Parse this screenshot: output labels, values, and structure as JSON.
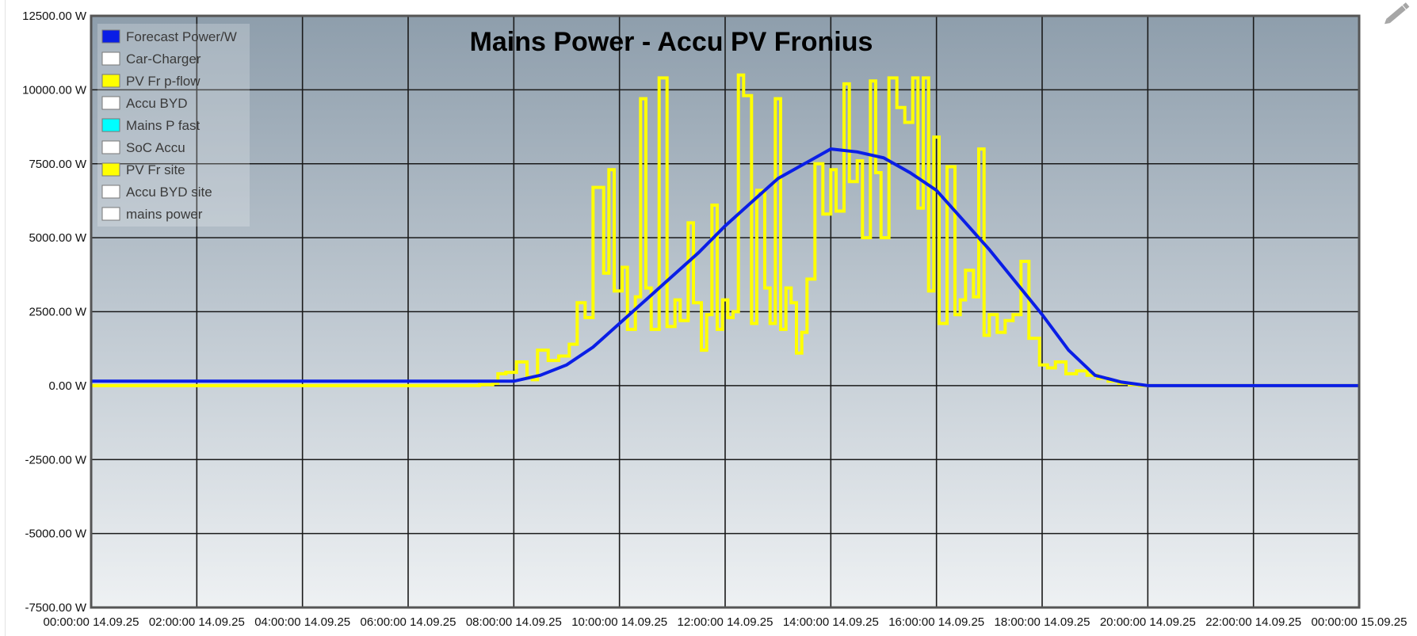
{
  "chart_data": {
    "type": "line",
    "title": "Mains Power - Accu PV Fronius",
    "xlabel": "",
    "ylabel": "",
    "x_range_hours": [
      0,
      24
    ],
    "ylim": [
      -7500,
      12500
    ],
    "y_ticks": [
      12500,
      10000,
      7500,
      5000,
      2500,
      0,
      -2500,
      -5000,
      -7500
    ],
    "y_tick_labels": [
      "12500.00 W",
      "10000.00 W",
      "7500.00 W",
      "5000.00 W",
      "2500.00 W",
      "0.00 W",
      "-2500.00 W",
      "-5000.00 W",
      "-7500.00 W"
    ],
    "x_ticks_hours": [
      0,
      2,
      4,
      6,
      8,
      10,
      12,
      14,
      16,
      18,
      20,
      22,
      24
    ],
    "x_tick_labels": [
      "00:00:00 14.09.25",
      "02:00:00 14.09.25",
      "04:00:00 14.09.25",
      "06:00:00 14.09.25",
      "08:00:00 14.09.25",
      "10:00:00 14.09.25",
      "12:00:00 14.09.25",
      "14:00:00 14.09.25",
      "16:00:00 14.09.25",
      "18:00:00 14.09.25",
      "20:00:00 14.09.25",
      "22:00:00 14.09.25",
      "00:00:00 15.09.25"
    ],
    "grid": true,
    "legend_position": "top-left",
    "legend": [
      {
        "name": "Forecast Power/W",
        "color": "#0a1ee6"
      },
      {
        "name": "Car-Charger",
        "color": "#ffffff"
      },
      {
        "name": "PV Fr p-flow",
        "color": "#ffff00"
      },
      {
        "name": "Accu BYD",
        "color": "#ffffff"
      },
      {
        "name": "Mains P fast",
        "color": "#00ffff"
      },
      {
        "name": "SoC Accu",
        "color": "#ffffff"
      },
      {
        "name": "PV Fr site",
        "color": "#ffff00"
      },
      {
        "name": "Accu BYD site",
        "color": "#ffffff"
      },
      {
        "name": "mains power",
        "color": "#ffffff"
      }
    ],
    "series": [
      {
        "name": "Forecast Power/W",
        "color": "#0a1ee6",
        "step": false,
        "x": [
          0,
          8,
          8.5,
          9,
          9.5,
          10,
          10.5,
          11,
          11.5,
          12,
          12.5,
          13,
          13.5,
          14,
          14.5,
          15,
          15.5,
          16,
          16.5,
          17,
          17.5,
          18,
          18.5,
          19,
          19.5,
          20,
          24
        ],
        "y": [
          150,
          150,
          350,
          700,
          1300,
          2100,
          2900,
          3700,
          4500,
          5400,
          6200,
          7000,
          7500,
          8000,
          7900,
          7700,
          7200,
          6600,
          5600,
          4600,
          3500,
          2400,
          1200,
          350,
          120,
          0,
          0
        ]
      },
      {
        "name": "PV Fr p-flow",
        "color": "#ffff00",
        "step": true,
        "x": [
          0,
          7.35,
          7.6,
          7.7,
          7.85,
          8.05,
          8.25,
          8.35,
          8.45,
          8.65,
          8.85,
          9.05,
          9.2,
          9.35,
          9.5,
          9.7,
          9.8,
          9.9,
          10.05,
          10.15,
          10.3,
          10.4,
          10.5,
          10.6,
          10.75,
          10.9,
          11.05,
          11.15,
          11.3,
          11.4,
          11.55,
          11.65,
          11.75,
          11.85,
          11.95,
          12.05,
          12.15,
          12.25,
          12.35,
          12.5,
          12.6,
          12.75,
          12.85,
          12.95,
          13.05,
          13.15,
          13.25,
          13.35,
          13.45,
          13.55,
          13.7,
          13.85,
          14.0,
          14.1,
          14.25,
          14.35,
          14.5,
          14.6,
          14.75,
          14.85,
          14.95,
          15.1,
          15.25,
          15.4,
          15.55,
          15.65,
          15.75,
          15.85,
          15.95,
          16.05,
          16.2,
          16.35,
          16.45,
          16.55,
          16.7,
          16.8,
          16.9,
          17.0,
          17.15,
          17.3,
          17.45,
          17.6,
          17.75,
          17.95,
          18.1,
          18.25,
          18.45,
          18.65,
          18.85,
          19.05,
          19.25,
          19.45,
          19.65,
          19.85,
          20.05,
          24
        ],
        "y": [
          0,
          30,
          80,
          400,
          450,
          800,
          300,
          200,
          1200,
          850,
          1000,
          1400,
          2800,
          2300,
          6700,
          3800,
          7300,
          3200,
          4000,
          1900,
          3000,
          9700,
          3300,
          1900,
          10400,
          2000,
          2900,
          2200,
          5500,
          2800,
          1200,
          2400,
          6100,
          1900,
          2900,
          2300,
          2500,
          10500,
          9800,
          2100,
          6600,
          3300,
          2100,
          9700,
          1900,
          3300,
          2800,
          1100,
          1800,
          3600,
          7500,
          5800,
          7300,
          5900,
          10200,
          6900,
          7600,
          5000,
          10300,
          7200,
          5000,
          10400,
          9400,
          8900,
          10400,
          6000,
          10400,
          3200,
          8400,
          2100,
          7400,
          2400,
          2900,
          3900,
          3000,
          8000,
          1700,
          2400,
          1800,
          2200,
          2400,
          4200,
          1600,
          700,
          600,
          800,
          400,
          500,
          350,
          250,
          150,
          80,
          30,
          0,
          0,
          0
        ]
      }
    ]
  }
}
